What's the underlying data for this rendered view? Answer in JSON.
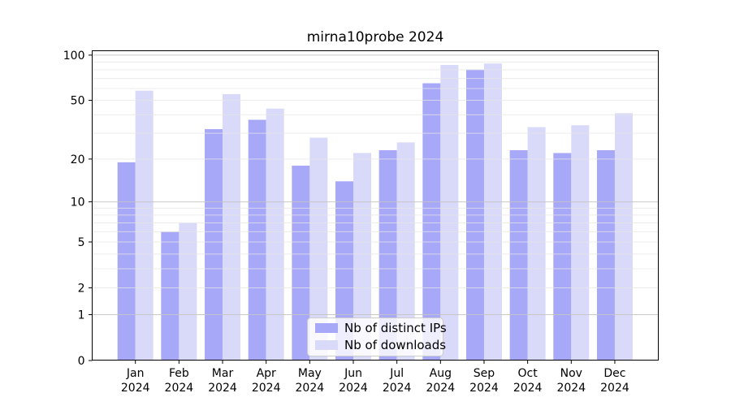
{
  "title": "mirna10probe 2024",
  "colors": {
    "background": "#ffffff",
    "bar_distinct_ips": "#a8a8f8",
    "bar_downloads": "#d9d9f9",
    "axis": "#000000",
    "major_grid": "#c4c4c4",
    "minor_grid": "#e6e6e6",
    "legend_border": "#cccccc",
    "text": "#000000"
  },
  "chart_data": {
    "type": "bar",
    "title": "mirna10probe 2024",
    "categories": [
      "Jan",
      "Feb",
      "Mar",
      "Apr",
      "May",
      "Jun",
      "Jul",
      "Aug",
      "Sep",
      "Oct",
      "Nov",
      "Dec"
    ],
    "year": "2024",
    "series": [
      {
        "name": "Nb of distinct IPs",
        "color": "#a8a8f8",
        "values": [
          19,
          6,
          32,
          37,
          18,
          14,
          23,
          65,
          80,
          23,
          22,
          23
        ]
      },
      {
        "name": "Nb of downloads",
        "color": "#d9d9f9",
        "values": [
          58,
          7,
          55,
          44,
          28,
          22,
          26,
          86,
          88,
          33,
          34,
          41
        ]
      }
    ],
    "xlabel": "",
    "ylabel": "",
    "yscale": "symlog",
    "ylim": [
      0,
      108
    ],
    "yticks": [
      0,
      1,
      2,
      5,
      10,
      20,
      50,
      100
    ],
    "major_gridlines": [
      1,
      10,
      100
    ],
    "minor_gridlines": [
      2,
      3,
      4,
      5,
      6,
      7,
      8,
      9,
      20,
      30,
      40,
      50,
      60,
      70,
      80,
      90
    ],
    "grid": true,
    "legend_position": "lower center"
  }
}
